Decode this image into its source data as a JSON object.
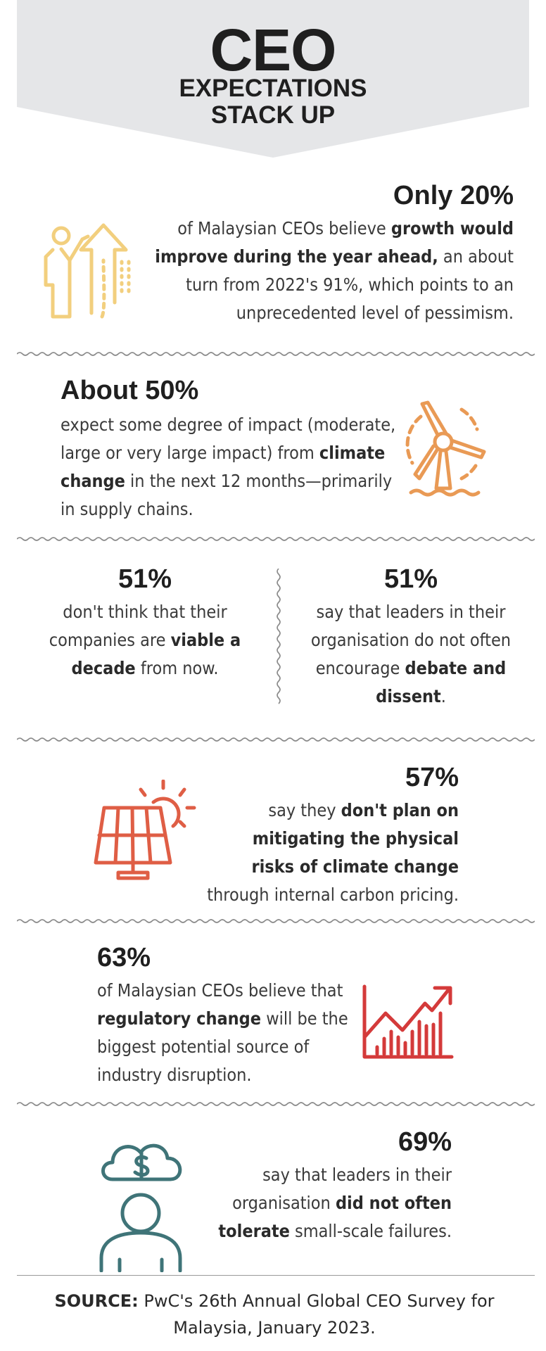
{
  "header": {
    "title": "CEO",
    "subtitle_line1": "EXPECTATIONS",
    "subtitle_line2": "STACK UP"
  },
  "stats": [
    {
      "headline": "Only 20%",
      "pre": "of Malaysian CEOs believe ",
      "bold": "growth would improve during the year ahead,",
      "post": " an about turn from 2022's 91%, which points to an unprecedented level of pessimism.",
      "icon": "person-growth-arrow-icon"
    },
    {
      "headline": "About 50%",
      "pre": "expect some degree of impact (moderate, large or very large impact) from ",
      "bold": "climate change",
      "post": " in the next 12 months—primarily in supply chains.",
      "icon": "wind-turbine-icon"
    },
    {
      "headline": "51%",
      "pre": "don't think that their companies are ",
      "bold": "viable a decade",
      "post": " from now."
    },
    {
      "headline": "51%",
      "pre": "say that leaders in their organisation do not often encourage ",
      "bold": "debate and dissent",
      "post": "."
    },
    {
      "headline": "57%",
      "pre": "say they ",
      "bold": "don't plan on mitigating the physical risks of climate change",
      "post": " through internal carbon pricing.",
      "icon": "solar-panel-sun-icon"
    },
    {
      "headline": "63%",
      "pre": "of Malaysian CEOs believe that ",
      "bold": "regulatory change",
      "post": " will be the biggest potential source of industry disruption.",
      "icon": "rising-chart-icon"
    },
    {
      "headline": "69%",
      "pre": "say that leaders in their organisation ",
      "bold": "did not often tolerate",
      "post": " small-scale failures.",
      "icon": "person-money-cloud-icon"
    }
  ],
  "source": {
    "label": "SOURCE:",
    "text": " PwC's 26th Annual Global CEO Survey for Malaysia, January 2023."
  },
  "colors": {
    "banner_bg": "#e5e6e8",
    "yellow": "#f2cf7e",
    "orange": "#e99a55",
    "coral": "#df5e45",
    "red": "#d43a3a",
    "teal": "#3f7478"
  }
}
